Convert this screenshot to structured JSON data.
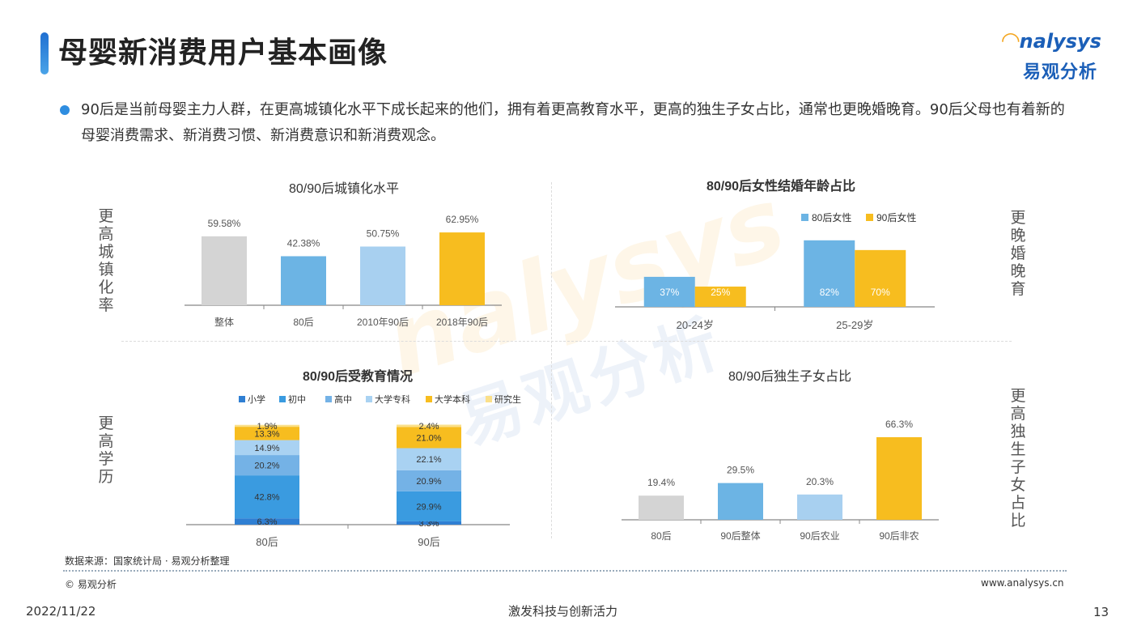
{
  "page": {
    "title": "母婴新消费用户基本画像",
    "intro": "90后是当前母婴主力人群，在更高城镇化水平下成长起来的他们，拥有着更高教育水平，更高的独生子女占比，通常也更晚婚晚育。90后父母也有着新的母婴消费需求、新消费习惯、新消费意识和新消费观念。",
    "logo_en": "nalysys",
    "logo_cn": "易观分析",
    "watermark_en": "nalysys",
    "watermark_cn": "易观分析",
    "source": "数据来源：国家统计局 · 易观分析整理",
    "copyright": "© 易观分析",
    "website": "www.analysys.cn",
    "date": "2022/11/22",
    "slogan": "激发科技与创新活力",
    "page_number": "13"
  },
  "side_labels": {
    "urbanization": "更高城镇化率",
    "marriage": "更晚婚晚育",
    "education": "更高学历",
    "only_child": "更高独生子女占比"
  },
  "chart_data": [
    {
      "type": "bar",
      "title": "80/90后城镇化水平",
      "categories": [
        "整体",
        "80后",
        "2010年90后",
        "2018年90后"
      ],
      "values": [
        59.58,
        42.38,
        50.75,
        62.95
      ],
      "labels": [
        "59.58%",
        "42.38%",
        "50.75%",
        "62.95%"
      ],
      "colors": [
        "#d4d4d4",
        "#6cb4e4",
        "#a8d0f0",
        "#f7bd1f"
      ],
      "ylim": [
        0,
        70
      ]
    },
    {
      "type": "bar",
      "title": "80/90后女性结婚年龄占比",
      "categories": [
        "20-24岁",
        "25-29岁"
      ],
      "series": [
        {
          "name": "80后女性",
          "values": [
            37,
            82
          ],
          "labels": [
            "37%",
            "82%"
          ],
          "color": "#6cb4e4"
        },
        {
          "name": "90后女性",
          "values": [
            25,
            70
          ],
          "labels": [
            "25%",
            "70%"
          ],
          "color": "#f7bd1f"
        }
      ],
      "legend": "top-right",
      "ylim": [
        0,
        90
      ]
    },
    {
      "type": "bar",
      "stacked": true,
      "title": "80/90后受教育情况",
      "categories": [
        "80后",
        "90后"
      ],
      "series": [
        {
          "name": "小学",
          "values": [
            6.3,
            3.3
          ],
          "labels": [
            "6.3%",
            "3.3%"
          ],
          "color": "#2f7fd3"
        },
        {
          "name": "初中",
          "values": [
            42.8,
            29.9
          ],
          "labels": [
            "42.8%",
            "29.9%"
          ],
          "color": "#3a9be0"
        },
        {
          "name": "高中",
          "values": [
            20.2,
            20.9
          ],
          "labels": [
            "20.2%",
            "20.9%"
          ],
          "color": "#74b2e6"
        },
        {
          "name": "大学专科",
          "values": [
            14.9,
            22.1
          ],
          "labels": [
            "14.9%",
            "22.1%"
          ],
          "color": "#a9d2f2"
        },
        {
          "name": "大学本科",
          "values": [
            13.3,
            21.0
          ],
          "labels": [
            "13.3%",
            "21.0%"
          ],
          "color": "#f7bd1f"
        },
        {
          "name": "研究生",
          "values": [
            1.9,
            2.4
          ],
          "labels": [
            "1.9%",
            "2.4%"
          ],
          "color": "#fbe08a"
        }
      ],
      "legend": "top",
      "ylim": [
        0,
        100
      ]
    },
    {
      "type": "bar",
      "title": "80/90后独生子女占比",
      "categories": [
        "80后",
        "90后整体",
        "90后农业",
        "90后非农"
      ],
      "values": [
        19.4,
        29.5,
        20.3,
        66.3
      ],
      "labels": [
        "19.4%",
        "29.5%",
        "20.3%",
        "66.3%"
      ],
      "colors": [
        "#d4d4d4",
        "#6cb4e4",
        "#a8d0f0",
        "#f7bd1f"
      ],
      "ylim": [
        0,
        70
      ]
    }
  ]
}
